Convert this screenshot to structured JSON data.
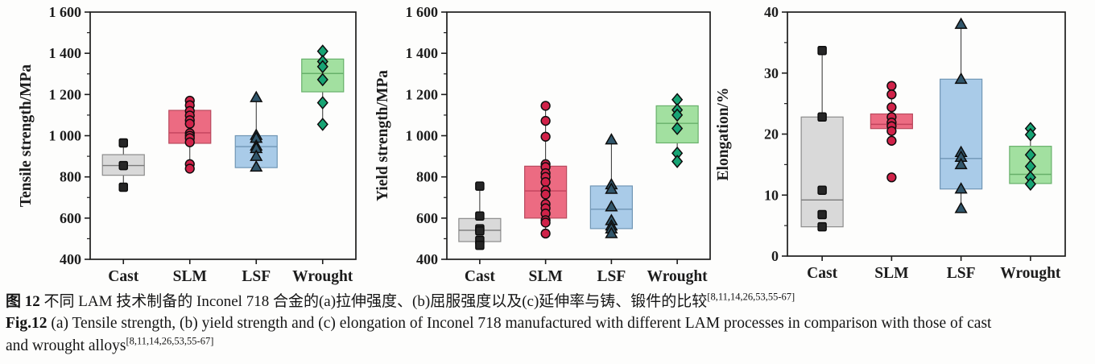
{
  "caption": {
    "zh_prefix": "图 12",
    "zh_text": "  不同 LAM 技术制备的 Inconel 718 合金的(a)拉伸强度、(b)屈服强度以及(c)延伸率与铸、锻件的比较",
    "ref": "[8,11,14,26,53,55-67]",
    "en_prefix": "Fig.12",
    "en_text": "  (a) Tensile strength, (b) yield strength and (c) elongation of Inconel 718 manufactured with different LAM processes in comparison with those of cast",
    "en_text2": "and wrought alloys"
  },
  "chart_data": [
    {
      "type": "box",
      "panel": "a",
      "ylabel": "Tensile strength/MPa",
      "ylim": [
        400,
        1600
      ],
      "grid": false,
      "yticks": [
        {
          "v": 400,
          "label": "400"
        },
        {
          "v": 600,
          "label": "600"
        },
        {
          "v": 800,
          "label": "800"
        },
        {
          "v": 1000,
          "label": "1 000"
        },
        {
          "v": 1200,
          "label": "1 200"
        },
        {
          "v": 1400,
          "label": "1 400"
        },
        {
          "v": 1600,
          "label": "1 600"
        }
      ],
      "categories": [
        "Cast",
        "SLM",
        "LSF",
        "Wrought"
      ],
      "series": [
        {
          "category": "Cast",
          "marker": "square",
          "marker_fill": "#262626",
          "box_fill": "#d9d9d9",
          "box_edge": "#8c8c8c",
          "median_color": "#7a7a7a",
          "q1": 808,
          "median": 855,
          "q3": 908,
          "whisker_low": 750,
          "whisker_high": 965,
          "points": [
            965,
            855,
            750
          ]
        },
        {
          "category": "SLM",
          "marker": "circle",
          "marker_fill": "#d02249",
          "box_fill": "#ec6b82",
          "box_edge": "#b94a5e",
          "median_color": "#c2435c",
          "q1": 963,
          "median": 1014,
          "q3": 1123,
          "whisker_low": 840,
          "whisker_high": 1170,
          "points": [
            1170,
            1148,
            1120,
            1098,
            1075,
            1058,
            1012,
            1000,
            988,
            968,
            862,
            840
          ]
        },
        {
          "category": "LSF",
          "marker": "triangle-up",
          "marker_fill": "#31566b",
          "box_fill": "#a9cbe8",
          "box_edge": "#7096b5",
          "median_color": "#7096b5",
          "q1": 845,
          "median": 947,
          "q3": 1000,
          "whisker_low": 845,
          "whisker_high": 1185,
          "points": [
            1185,
            1002,
            988,
            950,
            938,
            900,
            848
          ]
        },
        {
          "category": "Wrought",
          "marker": "diamond",
          "marker_fill": "#17a474",
          "box_fill": "#a2e0a0",
          "box_edge": "#67b06a",
          "median_color": "#67b06a",
          "q1": 1213,
          "median": 1302,
          "q3": 1372,
          "whisker_low": 1055,
          "whisker_high": 1410,
          "points": [
            1410,
            1360,
            1335,
            1272,
            1160,
            1055
          ]
        }
      ]
    },
    {
      "type": "box",
      "panel": "b",
      "ylabel": "Yield strength/MPa",
      "ylim": [
        400,
        1600
      ],
      "grid": false,
      "yticks": [
        {
          "v": 400,
          "label": "400"
        },
        {
          "v": 600,
          "label": "600"
        },
        {
          "v": 800,
          "label": "800"
        },
        {
          "v": 1000,
          "label": "1 000"
        },
        {
          "v": 1200,
          "label": "1 200"
        },
        {
          "v": 1400,
          "label": "1 400"
        },
        {
          "v": 1600,
          "label": "1 600"
        }
      ],
      "categories": [
        "Cast",
        "SLM",
        "LSF",
        "Wrought"
      ],
      "series": [
        {
          "category": "Cast",
          "marker": "square",
          "marker_fill": "#262626",
          "box_fill": "#d9d9d9",
          "box_edge": "#8c8c8c",
          "median_color": "#7a7a7a",
          "q1": 486,
          "median": 541,
          "q3": 598,
          "whisker_low": 468,
          "whisker_high": 755,
          "points": [
            755,
            610,
            548,
            538,
            492,
            468
          ]
        },
        {
          "category": "SLM",
          "marker": "circle",
          "marker_fill": "#d02249",
          "box_fill": "#ec6b82",
          "box_edge": "#b94a5e",
          "median_color": "#c2435c",
          "q1": 600,
          "median": 732,
          "q3": 852,
          "whisker_low": 525,
          "whisker_high": 1145,
          "points": [
            1145,
            1072,
            995,
            862,
            848,
            818,
            800,
            775,
            735,
            715,
            668,
            648,
            622,
            590,
            578,
            525
          ]
        },
        {
          "category": "LSF",
          "marker": "triangle-up",
          "marker_fill": "#31566b",
          "box_fill": "#a9cbe8",
          "box_edge": "#7096b5",
          "median_color": "#7096b5",
          "q1": 549,
          "median": 643,
          "q3": 756,
          "whisker_low": 525,
          "whisker_high": 980,
          "points": [
            980,
            762,
            740,
            655,
            588,
            562,
            548,
            525
          ]
        },
        {
          "category": "Wrought",
          "marker": "diamond",
          "marker_fill": "#17a474",
          "box_fill": "#a2e0a0",
          "box_edge": "#67b06a",
          "median_color": "#67b06a",
          "q1": 965,
          "median": 1060,
          "q3": 1145,
          "whisker_low": 875,
          "whisker_high": 1175,
          "points": [
            1175,
            1125,
            1100,
            1035,
            915,
            875
          ]
        }
      ]
    },
    {
      "type": "box",
      "panel": "c",
      "ylabel": "Elongation/%",
      "ylim": [
        0,
        40
      ],
      "grid": false,
      "yticks": [
        {
          "v": 0,
          "label": "0"
        },
        {
          "v": 10,
          "label": "10"
        },
        {
          "v": 20,
          "label": "20"
        },
        {
          "v": 30,
          "label": "30"
        },
        {
          "v": 40,
          "label": "40"
        }
      ],
      "categories": [
        "Cast",
        "SLM",
        "LSF",
        "Wrought"
      ],
      "series": [
        {
          "category": "Cast",
          "marker": "square",
          "marker_fill": "#262626",
          "box_fill": "#d9d9d9",
          "box_edge": "#8c8c8c",
          "median_color": "#7a7a7a",
          "q1": 4.8,
          "median": 9.2,
          "q3": 22.8,
          "whisker_low": 4.8,
          "whisker_high": 33.7,
          "points": [
            33.7,
            22.8,
            10.8,
            6.8,
            4.8
          ]
        },
        {
          "category": "SLM",
          "marker": "circle",
          "marker_fill": "#d02249",
          "box_fill": "#ec6b82",
          "box_edge": "#b94a5e",
          "median_color": "#c2435c",
          "q1": 20.9,
          "median": 21.6,
          "q3": 23.3,
          "whisker_low": 18.9,
          "whisker_high": 27.9,
          "points": [
            27.9,
            26.5,
            24.4,
            22.8,
            21.9,
            21.3,
            20.5,
            18.9,
            12.9
          ]
        },
        {
          "category": "LSF",
          "marker": "triangle-up",
          "marker_fill": "#31566b",
          "box_fill": "#a9cbe8",
          "box_edge": "#7096b5",
          "median_color": "#7096b5",
          "q1": 11,
          "median": 16,
          "q3": 29,
          "whisker_low": 7.8,
          "whisker_high": 38,
          "points": [
            38,
            29,
            17,
            16.2,
            15,
            11,
            7.8
          ]
        },
        {
          "category": "Wrought",
          "marker": "diamond",
          "marker_fill": "#17a474",
          "box_fill": "#a2e0a0",
          "box_edge": "#67b06a",
          "median_color": "#67b06a",
          "q1": 11.9,
          "median": 13.4,
          "q3": 18,
          "whisker_low": 11.8,
          "whisker_high": 20.9,
          "points": [
            20.9,
            19.9,
            16.6,
            14.7,
            12.9,
            11.8
          ]
        }
      ]
    }
  ]
}
